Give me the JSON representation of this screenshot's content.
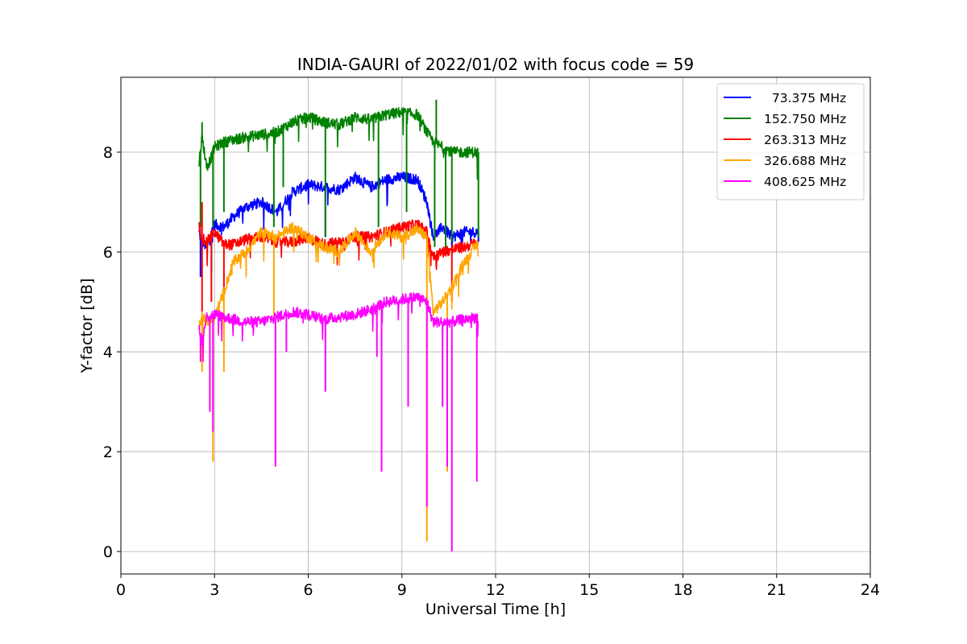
{
  "chart_data": {
    "type": "line",
    "title": "INDIA-GAURI of 2022/01/02 with focus code = 59",
    "xlabel": "Universal Time [h]",
    "ylabel": "Y-factor [dB]",
    "xlim": [
      0,
      24
    ],
    "ylim": [
      -0.45,
      9.5
    ],
    "xticks": [
      "0",
      "3",
      "6",
      "9",
      "12",
      "15",
      "18",
      "21",
      "24"
    ],
    "yticks": [
      "0",
      "2",
      "4",
      "6",
      "8"
    ],
    "grid": true,
    "legend_position": "top-right",
    "series": [
      {
        "name": "  73.375 MHz",
        "color": "#0000ff",
        "x": [
          2.5,
          2.6,
          2.75,
          3.0,
          3.3,
          3.6,
          4.0,
          4.5,
          5.0,
          5.5,
          6.0,
          6.5,
          7.0,
          7.5,
          8.0,
          8.5,
          9.0,
          9.5,
          9.8,
          10.0,
          10.3,
          10.6,
          11.0,
          11.45
        ],
        "y": [
          6.4,
          6.2,
          6.1,
          6.55,
          6.5,
          6.7,
          6.9,
          7.0,
          6.8,
          7.2,
          7.35,
          7.3,
          7.25,
          7.5,
          7.3,
          7.45,
          7.5,
          7.45,
          7.0,
          6.3,
          6.5,
          6.3,
          6.4,
          6.4
        ],
        "dips": [
          [
            2.55,
            5.5
          ],
          [
            2.9,
            5.6
          ],
          [
            6.55,
            6.3
          ],
          [
            10.9,
            6.0
          ],
          [
            11.45,
            6.2
          ]
        ]
      },
      {
        "name": "152.750 MHz",
        "color": "#008000",
        "x": [
          2.5,
          2.6,
          2.75,
          2.9,
          3.0,
          3.3,
          3.6,
          4.0,
          4.5,
          5.0,
          5.5,
          6.0,
          6.5,
          7.0,
          7.5,
          8.0,
          8.5,
          9.0,
          9.5,
          9.8,
          10.0,
          10.3,
          10.6,
          11.0,
          11.45
        ],
        "y": [
          7.8,
          8.3,
          7.7,
          7.9,
          8.1,
          8.2,
          8.25,
          8.3,
          8.35,
          8.4,
          8.6,
          8.7,
          8.6,
          8.55,
          8.7,
          8.65,
          8.75,
          8.8,
          8.75,
          8.4,
          8.2,
          8.1,
          8.0,
          8.0,
          8.0
        ],
        "dips": [
          [
            2.55,
            6.5
          ],
          [
            2.95,
            6.5
          ],
          [
            3.3,
            6.8
          ],
          [
            4.9,
            6.5
          ],
          [
            5.2,
            7.3
          ],
          [
            6.55,
            6.3
          ],
          [
            8.25,
            6.5
          ],
          [
            9.15,
            6.8
          ],
          [
            10.05,
            6.1
          ],
          [
            10.4,
            6.0
          ],
          [
            10.6,
            6.2
          ],
          [
            11.45,
            6.3
          ]
        ],
        "spikes": [
          [
            2.6,
            8.6
          ],
          [
            10.1,
            9.05
          ]
        ]
      },
      {
        "name": "263.313 MHz",
        "color": "#ff0000",
        "x": [
          2.5,
          2.6,
          2.75,
          3.0,
          3.3,
          3.6,
          4.0,
          4.5,
          5.0,
          5.5,
          6.0,
          6.5,
          7.0,
          7.5,
          8.0,
          8.5,
          9.0,
          9.5,
          9.8,
          10.0,
          10.3,
          10.6,
          11.0,
          11.45
        ],
        "y": [
          6.5,
          6.3,
          6.2,
          6.4,
          6.15,
          6.15,
          6.25,
          6.3,
          6.2,
          6.2,
          6.3,
          6.15,
          6.2,
          6.3,
          6.3,
          6.4,
          6.5,
          6.55,
          6.4,
          5.9,
          6.0,
          6.05,
          6.1,
          6.2
        ],
        "dips": [
          [
            2.6,
            4.8
          ],
          [
            2.9,
            5.0
          ],
          [
            3.3,
            5.2
          ],
          [
            10.6,
            5.0
          ]
        ],
        "spikes": [
          [
            2.6,
            7.0
          ]
        ]
      },
      {
        "name": "326.688 MHz",
        "color": "#ffa500",
        "x": [
          2.5,
          2.6,
          2.75,
          3.0,
          3.3,
          3.6,
          4.0,
          4.5,
          5.0,
          5.5,
          6.0,
          6.5,
          7.0,
          7.5,
          8.0,
          8.5,
          9.0,
          9.5,
          9.8,
          10.0,
          10.3,
          10.6,
          11.0,
          11.45
        ],
        "y": [
          4.5,
          4.7,
          4.6,
          4.7,
          5.2,
          5.8,
          6.0,
          6.4,
          6.3,
          6.5,
          6.3,
          6.1,
          6.0,
          6.4,
          6.0,
          6.4,
          6.3,
          6.45,
          6.3,
          4.8,
          5.0,
          5.3,
          5.8,
          6.2
        ],
        "dips": [
          [
            2.6,
            3.6
          ],
          [
            2.95,
            1.8
          ],
          [
            3.3,
            3.6
          ],
          [
            4.9,
            4.7
          ],
          [
            9.8,
            0.2
          ],
          [
            10.45,
            1.6
          ]
        ]
      },
      {
        "name": "408.625 MHz",
        "color": "#ff00ff",
        "x": [
          2.5,
          2.6,
          2.75,
          3.0,
          3.3,
          3.6,
          4.0,
          4.5,
          5.0,
          5.5,
          6.0,
          6.5,
          7.0,
          7.5,
          8.0,
          8.5,
          9.0,
          9.5,
          9.8,
          10.0,
          10.3,
          10.6,
          11.0,
          11.45
        ],
        "y": [
          4.5,
          4.2,
          4.7,
          4.75,
          4.7,
          4.65,
          4.6,
          4.6,
          4.7,
          4.8,
          4.75,
          4.65,
          4.7,
          4.75,
          4.85,
          5.0,
          5.05,
          5.1,
          5.0,
          4.6,
          4.6,
          4.6,
          4.65,
          4.7
        ],
        "dips": [
          [
            2.55,
            3.8
          ],
          [
            2.85,
            2.8
          ],
          [
            2.95,
            2.4
          ],
          [
            4.95,
            1.7
          ],
          [
            5.3,
            4.0
          ],
          [
            6.55,
            3.2
          ],
          [
            8.2,
            3.9
          ],
          [
            8.35,
            1.6
          ],
          [
            9.2,
            2.9
          ],
          [
            9.8,
            0.9
          ],
          [
            10.3,
            2.9
          ],
          [
            10.45,
            1.7
          ],
          [
            10.6,
            0.0
          ],
          [
            11.4,
            1.4
          ]
        ]
      }
    ]
  }
}
